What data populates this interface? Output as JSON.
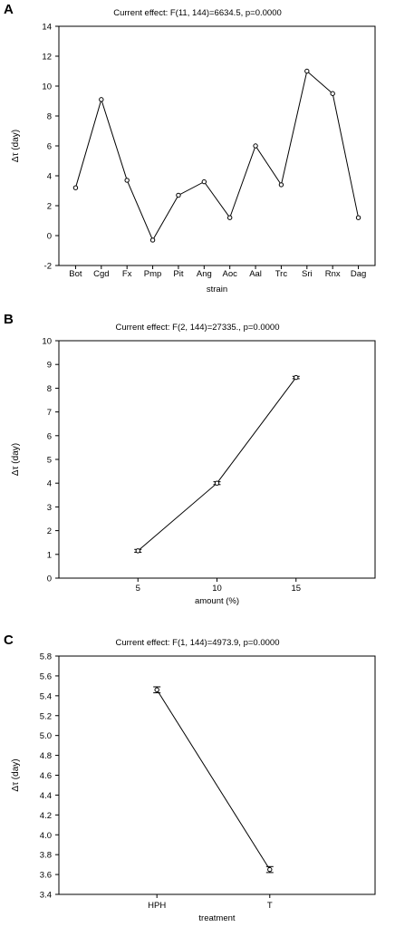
{
  "panels": [
    {
      "letter": "A",
      "title": "Current effect: F(11, 144)=6634.5, p=0.0000"
    },
    {
      "letter": "B",
      "title": "Current effect: F(2, 144)=27335., p=0.0000"
    },
    {
      "letter": "C",
      "title": "Current effect: F(1, 144)=4973.9, p=0.0000"
    }
  ],
  "chart_data": [
    {
      "type": "line",
      "title": "Current effect: F(11, 144)=6634.5, p=0.0000",
      "xlabel": "strain",
      "ylabel": "Δτ (day)",
      "categories": [
        "Bot",
        "Cgd",
        "Fx",
        "Pmp",
        "Pit",
        "Ang",
        "Aoc",
        "Aal",
        "Trc",
        "Sri",
        "Rnx",
        "Dag"
      ],
      "series": [
        {
          "values": [
            3.2,
            9.1,
            3.7,
            -0.3,
            2.7,
            3.6,
            1.2,
            6.0,
            3.4,
            11.0,
            9.5,
            1.2
          ]
        }
      ],
      "ylim": [
        -2,
        14
      ],
      "yticks": [
        -2,
        0,
        2,
        4,
        6,
        8,
        10,
        12,
        14
      ],
      "error_bars": false,
      "grid": false
    },
    {
      "type": "line",
      "title": "Current effect: F(2, 144)=27335., p=0.0000",
      "xlabel": "amount (%)",
      "ylabel": "Δτ (day)",
      "x": [
        5,
        10,
        15
      ],
      "series": [
        {
          "values": [
            1.15,
            4.0,
            8.45
          ],
          "errors": [
            0.06,
            0.06,
            0.05
          ]
        }
      ],
      "xlim": [
        0,
        20
      ],
      "xticks": [
        5,
        10,
        15
      ],
      "ylim": [
        0,
        10
      ],
      "yticks": [
        0,
        1,
        2,
        3,
        4,
        5,
        6,
        7,
        8,
        9,
        10
      ],
      "grid": false
    },
    {
      "type": "line",
      "title": "Current effect: F(1, 144)=4973.9, p=0.0000",
      "xlabel": "treatment",
      "ylabel": "Δτ (day)",
      "categories": [
        "HPH",
        "T"
      ],
      "series": [
        {
          "values": [
            5.46,
            3.65
          ],
          "errors": [
            0.03,
            0.03
          ]
        }
      ],
      "ylim": [
        3.4,
        5.8
      ],
      "yticks": [
        3.4,
        3.6,
        3.8,
        4.0,
        4.2,
        4.4,
        4.6,
        4.8,
        5.0,
        5.2,
        5.4,
        5.6,
        5.8
      ],
      "ytick_decimals": 1,
      "grid": false
    }
  ]
}
